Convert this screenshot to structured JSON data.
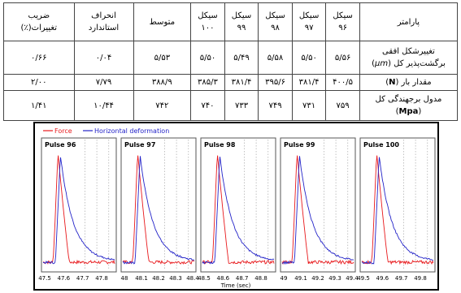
{
  "table": {
    "header": {
      "param": "پارامتر",
      "c96": [
        "سیکل",
        "۹۶"
      ],
      "c97": [
        "سیکل",
        "۹۷"
      ],
      "c98": [
        "سیکل",
        "۹۸"
      ],
      "c99": [
        "سیکل",
        "۹۹"
      ],
      "c100": [
        "سیکل",
        "۱۰۰"
      ],
      "mean": "متوسط",
      "std": [
        "انحراف",
        "استاندارد"
      ],
      "cv": [
        "ضریب",
        "تغییرات(٪)"
      ]
    },
    "rows": [
      {
        "param_line1": "تغییرشکل افقی",
        "param_line2_pre": "برگشت‌پذیر کل (",
        "param_unit": "μm",
        "param_line2_post": ")",
        "values": [
          "۵/۵۶",
          "۵/۵۰",
          "۵/۵۸",
          "۵/۴۹",
          "۵/۵۰",
          "۵/۵۳",
          "۰/۰۴",
          "۰/۶۶"
        ]
      },
      {
        "param_line1_pre": "مقدار بار (",
        "param_unit": "N",
        "param_line1_post": ")",
        "values": [
          "۴۰۰/۵",
          "۳۸۱/۴",
          "۳۹۵/۶",
          "۳۸۱/۴",
          "۳۸۵/۳",
          "۳۸۸/۹",
          "۷/۷۹",
          "۲/۰۰"
        ]
      },
      {
        "param_line1": "مدول برجهندگی کل",
        "param_line2_pre": "(",
        "param_unit": "Mpa",
        "param_line2_post": ")",
        "values": [
          "۷۵۹",
          "۷۳۱",
          "۷۴۹",
          "۷۳۳",
          "۷۴۰",
          "۷۴۲",
          "۱۰/۴۴",
          "۱/۴۱"
        ]
      }
    ]
  },
  "chart_data": {
    "type": "line",
    "legend": {
      "items": [
        "Force",
        "Horizontal deformation"
      ],
      "placement": "top-left"
    },
    "xlabel": "Time (sec)",
    "colors": {
      "Force": "#e8191c",
      "Horizontal deformation": "#2323c8"
    },
    "panels": [
      {
        "title": "Pulse  96",
        "ticks": [
          "47.5",
          "47.6",
          "47.7",
          "47.8"
        ],
        "pulse_start": 47.6
      },
      {
        "title": "Pulse  97",
        "ticks": [
          "48",
          "48.1",
          "48.2",
          "48.3",
          "48.4"
        ],
        "pulse_start": 48.1
      },
      {
        "title": "Pulse  98",
        "ticks": [
          "48.5",
          "48.6",
          "48.7",
          "48.8"
        ],
        "pulse_start": 48.6
      },
      {
        "title": "Pulse  99",
        "ticks": [
          "49",
          "49.1",
          "49.2",
          "49.3",
          "49.4"
        ],
        "pulse_start": 49.1
      },
      {
        "title": "Pulse 100",
        "ticks": [
          "49.5",
          "49.6",
          "49.7",
          "49.8"
        ],
        "pulse_start": 49.6
      }
    ],
    "series": [
      {
        "name": "Force",
        "shape": "short sharp pulse, near-zero baseline with noise"
      },
      {
        "name": "Horizontal deformation",
        "shape": "rise with pulse then slow decay"
      }
    ]
  }
}
